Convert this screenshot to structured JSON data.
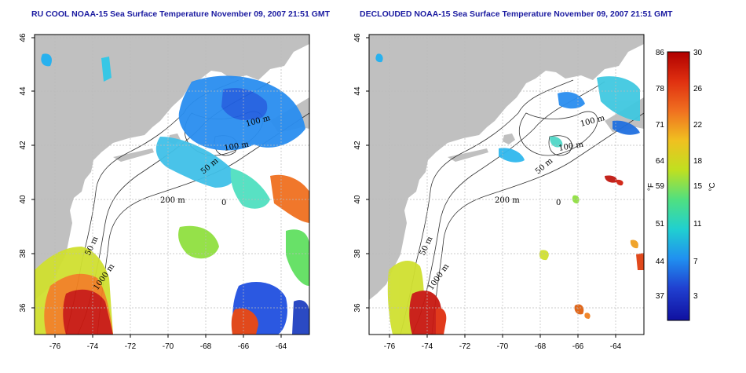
{
  "titles": {
    "left": "RU COOL NOAA-15 Sea Surface Temperature November 09, 2007 21:51 GMT",
    "right": "DECLOUDED NOAA-15 Sea Surface Temperature November 09, 2007 21:51 GMT"
  },
  "map": {
    "lon_ticks": [
      "-76",
      "-74",
      "-72",
      "-70",
      "-68",
      "-66",
      "-64"
    ],
    "lat_ticks": [
      "46",
      "44",
      "42",
      "40",
      "38",
      "36"
    ],
    "contour_labels": {
      "c100a": "100 m",
      "c100b": "100 m",
      "c50a": "50 m",
      "c200": "200 m",
      "c50b": "50 m",
      "c1000": "1000 m",
      "c0": "0"
    },
    "colors": {
      "land": "#c0c0c0",
      "ocean": "#ffffff",
      "grid": "#bbbbbb",
      "contour": "#333333"
    }
  },
  "colorbar": {
    "fahrenheit_ticks": [
      "86",
      "78",
      "71",
      "64",
      "59",
      "51",
      "44",
      "37"
    ],
    "celsius_ticks": [
      "30",
      "26",
      "22",
      "18",
      "15",
      "11",
      "7",
      "3"
    ],
    "fahrenheit_label": "°F",
    "celsius_label": "°C",
    "gradient": [
      "#b00000",
      "#e03010",
      "#f07020",
      "#f0c020",
      "#c0e020",
      "#50e080",
      "#20d0d0",
      "#2090f0",
      "#2040d0",
      "#1010a0"
    ]
  }
}
